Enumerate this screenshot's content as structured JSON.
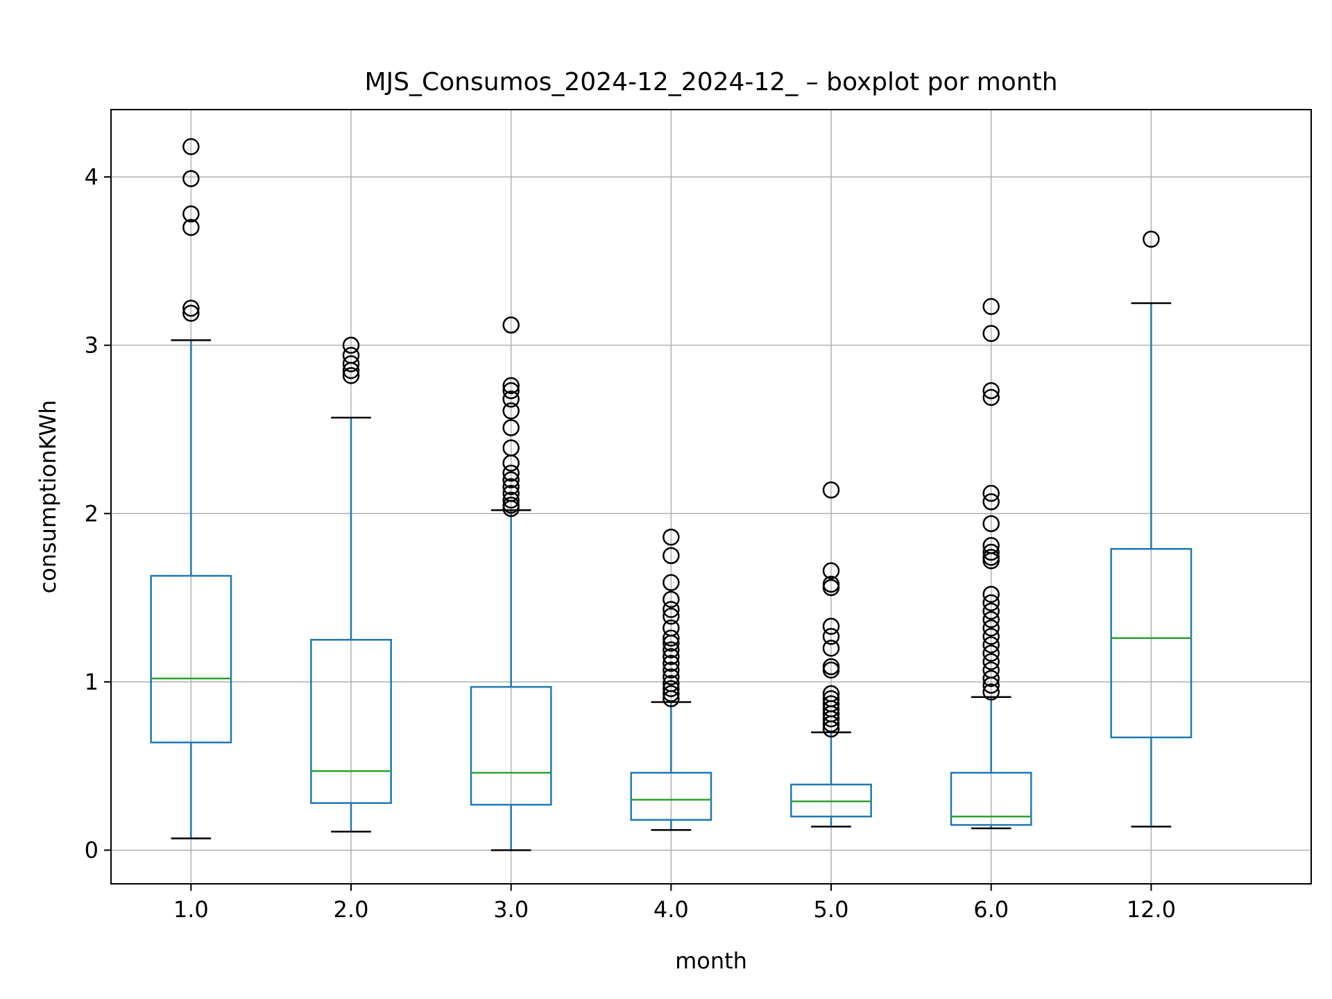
{
  "chart_data": {
    "type": "box",
    "title": "MJS_Consumos_2024-12_2024-12_ – boxplot por month",
    "xlabel": "month",
    "ylabel": "consumptionKWh",
    "categories": [
      "1.0",
      "2.0",
      "3.0",
      "4.0",
      "5.0",
      "6.0",
      "12.0"
    ],
    "yticks": [
      0,
      1,
      2,
      3,
      4
    ],
    "ylim": [
      -0.2,
      4.4
    ],
    "grid": true,
    "colors": {
      "box": "#1f77b4",
      "median": "#2ca02c",
      "cap": "#000000",
      "grid": "#b0b0b0"
    },
    "boxes": [
      {
        "category": "1.0",
        "whisker_low": 0.07,
        "q1": 0.64,
        "median": 1.02,
        "q3": 1.63,
        "whisker_high": 3.03,
        "outliers": [
          4.18,
          3.99,
          3.78,
          3.7,
          3.22,
          3.19
        ]
      },
      {
        "category": "2.0",
        "whisker_low": 0.11,
        "q1": 0.28,
        "median": 0.47,
        "q3": 1.25,
        "whisker_high": 2.57,
        "outliers": [
          3.0,
          2.94,
          2.89,
          2.85,
          2.82
        ]
      },
      {
        "category": "3.0",
        "whisker_low": 0.0,
        "q1": 0.27,
        "median": 0.46,
        "q3": 0.97,
        "whisker_high": 2.02,
        "outliers": [
          3.12,
          2.76,
          2.73,
          2.68,
          2.61,
          2.51,
          2.39,
          2.3,
          2.24,
          2.2,
          2.16,
          2.12,
          2.08,
          2.05,
          2.03
        ]
      },
      {
        "category": "4.0",
        "whisker_low": 0.12,
        "q1": 0.18,
        "median": 0.3,
        "q3": 0.46,
        "whisker_high": 0.88,
        "outliers": [
          1.86,
          1.75,
          1.59,
          1.49,
          1.43,
          1.39,
          1.32,
          1.26,
          1.23,
          1.19,
          1.15,
          1.11,
          1.07,
          1.03,
          0.99,
          0.96,
          0.93,
          0.9
        ]
      },
      {
        "category": "5.0",
        "whisker_low": 0.14,
        "q1": 0.2,
        "median": 0.29,
        "q3": 0.39,
        "whisker_high": 0.7,
        "outliers": [
          2.14,
          1.66,
          1.58,
          1.56,
          1.33,
          1.27,
          1.2,
          1.09,
          1.07,
          0.93,
          0.9,
          0.87,
          0.84,
          0.81,
          0.78,
          0.75,
          0.72
        ]
      },
      {
        "category": "6.0",
        "whisker_low": 0.13,
        "q1": 0.15,
        "median": 0.2,
        "q3": 0.46,
        "whisker_high": 0.91,
        "outliers": [
          3.23,
          3.07,
          2.73,
          2.69,
          2.12,
          2.07,
          1.94,
          1.81,
          1.77,
          1.74,
          1.72,
          1.52,
          1.47,
          1.42,
          1.37,
          1.32,
          1.27,
          1.22,
          1.17,
          1.12,
          1.07,
          1.02,
          0.98,
          0.94
        ]
      },
      {
        "category": "12.0",
        "whisker_low": 0.14,
        "q1": 0.67,
        "median": 1.26,
        "q3": 1.79,
        "whisker_high": 3.25,
        "outliers": [
          3.63
        ]
      }
    ]
  }
}
